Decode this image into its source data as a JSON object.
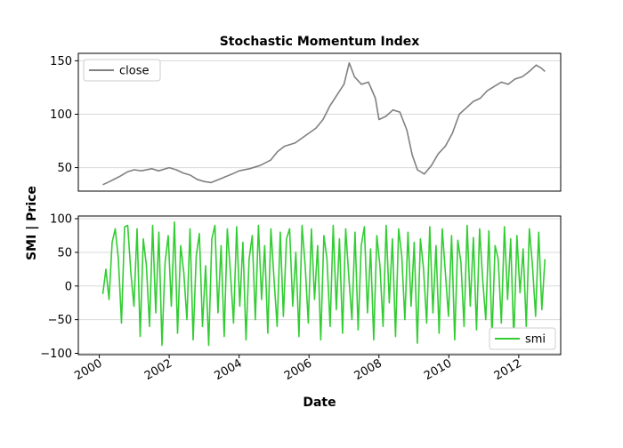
{
  "chart_data": [
    {
      "type": "line",
      "title": "Stochastic Momentum Index",
      "ylabel": "SMI | Price",
      "xlabel": "",
      "ylim": [
        28,
        157
      ],
      "yticks": [
        50,
        100,
        150
      ],
      "xlim": [
        1999.4,
        2013.2
      ],
      "grid": "horizontal",
      "legend_position": "top-left",
      "series": [
        {
          "name": "close",
          "color": "#808080",
          "x": [
            2000.1,
            2000.3,
            2000.6,
            2000.8,
            2001.0,
            2001.2,
            2001.5,
            2001.7,
            2002.0,
            2002.2,
            2002.4,
            2002.6,
            2002.8,
            2003.0,
            2003.2,
            2003.5,
            2003.8,
            2004.0,
            2004.3,
            2004.6,
            2004.9,
            2005.1,
            2005.3,
            2005.6,
            2005.9,
            2006.2,
            2006.4,
            2006.6,
            2006.8,
            2007.0,
            2007.15,
            2007.3,
            2007.5,
            2007.7,
            2007.9,
            2008.0,
            2008.2,
            2008.4,
            2008.6,
            2008.8,
            2008.95,
            2009.1,
            2009.3,
            2009.5,
            2009.7,
            2009.9,
            2010.1,
            2010.3,
            2010.5,
            2010.7,
            2010.9,
            2011.1,
            2011.3,
            2011.5,
            2011.7,
            2011.9,
            2012.1,
            2012.3,
            2012.5,
            2012.65,
            2012.75
          ],
          "values": [
            34,
            37,
            42,
            46,
            48,
            47,
            49,
            47,
            50,
            48,
            45,
            43,
            39,
            37,
            36,
            40,
            44,
            47,
            49,
            52,
            57,
            65,
            70,
            73,
            80,
            87,
            95,
            108,
            118,
            128,
            148,
            135,
            128,
            130,
            115,
            95,
            98,
            104,
            102,
            85,
            62,
            48,
            44,
            52,
            63,
            70,
            82,
            100,
            106,
            112,
            115,
            122,
            126,
            130,
            128,
            133,
            135,
            140,
            146,
            143,
            140
          ]
        }
      ]
    },
    {
      "type": "line",
      "title": "",
      "xlabel": "Date",
      "ylabel": "",
      "ylim": [
        -102,
        104
      ],
      "yticks": [
        -100,
        -50,
        0,
        50,
        100
      ],
      "xlim": [
        1999.4,
        2013.2
      ],
      "xticks": [
        "2000",
        "2002",
        "2004",
        "2006",
        "2008",
        "2010",
        "2012"
      ],
      "grid": "horizontal",
      "legend_position": "bottom-right",
      "series": [
        {
          "name": "smi",
          "color": "#32CD32",
          "x_start": 2000.1,
          "x_end": 2012.75,
          "values": [
            -12,
            25,
            -20,
            65,
            85,
            40,
            -55,
            88,
            90,
            20,
            -30,
            85,
            -75,
            70,
            30,
            -60,
            90,
            -40,
            80,
            -88,
            35,
            75,
            -30,
            95,
            -70,
            60,
            20,
            -50,
            85,
            -80,
            45,
            78,
            -60,
            30,
            -88,
            70,
            90,
            -40,
            60,
            -75,
            85,
            20,
            -55,
            88,
            -30,
            65,
            -80,
            40,
            75,
            -50,
            90,
            -20,
            60,
            -70,
            85,
            10,
            -60,
            80,
            -45,
            70,
            85,
            -30,
            50,
            -75,
            90,
            30,
            -55,
            85,
            -20,
            60,
            -80,
            75,
            40,
            -60,
            90,
            -35,
            70,
            -70,
            85,
            15,
            -50,
            80,
            -65,
            60,
            88,
            -40,
            55,
            -80,
            75,
            30,
            -60,
            90,
            -25,
            70,
            -75,
            85,
            45,
            -50,
            80,
            -30,
            65,
            -85,
            70,
            25,
            -55,
            88,
            -40,
            60,
            -70,
            85,
            20,
            -45,
            75,
            -80,
            68,
            35,
            -60,
            90,
            -30,
            72,
            -65,
            85,
            10,
            -50,
            82,
            -75,
            60,
            40,
            -55,
            88,
            -20,
            70,
            -80,
            75,
            -10,
            55,
            -60,
            85,
            30,
            -45,
            80,
            -35,
            40
          ]
        }
      ]
    }
  ]
}
